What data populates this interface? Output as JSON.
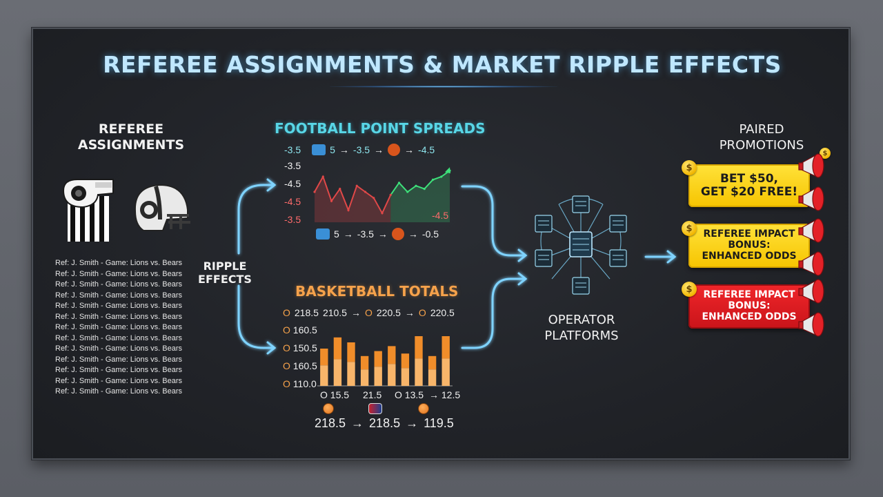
{
  "title": "REFEREE ASSIGNMENTS & MARKET RIPPLE EFFECTS",
  "referee": {
    "heading_line1": "REFEREE",
    "heading_line2": "ASSIGNMENTS",
    "rows": [
      "Ref: J. Smith - Game: Lions vs. Bears",
      "Ref: J. Smith - Game: Lions vs. Bears",
      "Ref: J. Smith - Game: Lions vs. Bears",
      "Ref: J. Smith - Game: Lions vs. Bears",
      "Ref: J. Smith - Game: Lions vs. Bears",
      "Ref: J. Smith - Game: Lions vs. Bears",
      "Ref: J. Smith - Game: Lions vs. Bears",
      "Ref: J. Smith - Game: Lions vs. Bears",
      "Ref: J. Smith - Game: Lions vs. Bears",
      "Ref: J. Smith - Game: Lions vs. Bears",
      "Ref: J. Smith - Game: Lions vs. Bears",
      "Ref: J. Smith - Game: Lions vs. Bears",
      "Ref: J. Smith - Game: Lions vs. Bears"
    ]
  },
  "ripple": {
    "line1": "RIPPLE",
    "line2": "EFFECTS"
  },
  "football": {
    "heading": "FOOTBALL POINT SPREADS",
    "top_row": {
      "left": "-3.5",
      "a": "5",
      "arrow1": "→",
      "b": "-3.5",
      "arrow2": "→",
      "c": "-4.5"
    },
    "y_labels": [
      "-3.5",
      "-4.5",
      "-4.5",
      "-3.5"
    ],
    "right_label": "-4.5",
    "bottom_row": {
      "a": "5",
      "arrow1": "→",
      "b": "-3.5",
      "arrow2": "→",
      "c": "-0.5"
    }
  },
  "basketball": {
    "heading": "BASKETBALL TOTALS",
    "top_row": {
      "p1": "O",
      "v1": "218.5",
      "v2": "210.5",
      "arrow1": "→",
      "p2": "O",
      "v3": "220.5",
      "arrow2": "→",
      "p3": "O",
      "v4": "220.5"
    },
    "y_labels": [
      "160.5",
      "150.5",
      "160.5",
      "110.0"
    ],
    "y_prefix": "O",
    "x_labels": [
      "O 15.5",
      "21.5",
      "O 13.5",
      "→ 12.5"
    ],
    "bottom_row": {
      "v1": "218.5",
      "arrow1": "→",
      "v2": "218.5",
      "arrow2": "→",
      "v3": "119.5"
    }
  },
  "operator": {
    "line1": "OPERATOR",
    "line2": "PLATFORMS"
  },
  "promotions": {
    "heading_line1": "PAIRED",
    "heading_line2": "PROMOTIONS",
    "cards": [
      {
        "line1": "BET $50,",
        "line2": "GET $20 FREE!",
        "line3": ""
      },
      {
        "line1": "REFEREE IMPACT",
        "line2": "BONUS:",
        "line3": "ENHANCED ODDS"
      },
      {
        "line1": "REFEREE IMPACT",
        "line2": "BONUS:",
        "line3": "ENHANCED ODDS"
      }
    ],
    "coin_symbol": "$"
  },
  "chart_data": [
    {
      "type": "line",
      "title": "FOOTBALL POINT SPREADS",
      "series": [
        {
          "values": [
            -4.0,
            -3.5,
            -4.3,
            -3.9,
            -4.6,
            -3.8,
            -4.0,
            -4.2,
            -4.7,
            -4.1,
            -3.7,
            -4.0,
            -3.8,
            -3.9,
            -3.6,
            -3.5,
            -3.3
          ]
        }
      ],
      "color_red": "#e04848",
      "color_green": "#3ee07a",
      "ylim": [
        -5.0,
        -3.0
      ]
    },
    {
      "type": "bar",
      "title": "BASKETBALL TOTALS",
      "series": [
        {
          "values": [
            0.6,
            0.78,
            0.7,
            0.48,
            0.56,
            0.64,
            0.52,
            0.8,
            0.48,
            0.8
          ]
        }
      ],
      "color_bar": "#f08d2a",
      "color_bar_light": "#f8b56a",
      "ylim": [
        0,
        1
      ]
    }
  ],
  "colors": {
    "glow": "#63c8ff",
    "teal": "#58d6e6",
    "orange": "#f6a24b",
    "yellow": "#f6c400",
    "red": "#d81a1f"
  },
  "icons": [
    "whistle-icon",
    "football-helmet-icon",
    "lions-logo-icon",
    "bears-logo-icon",
    "basketball-icon",
    "server-node-icon",
    "megaphone-icon",
    "coin-icon"
  ]
}
